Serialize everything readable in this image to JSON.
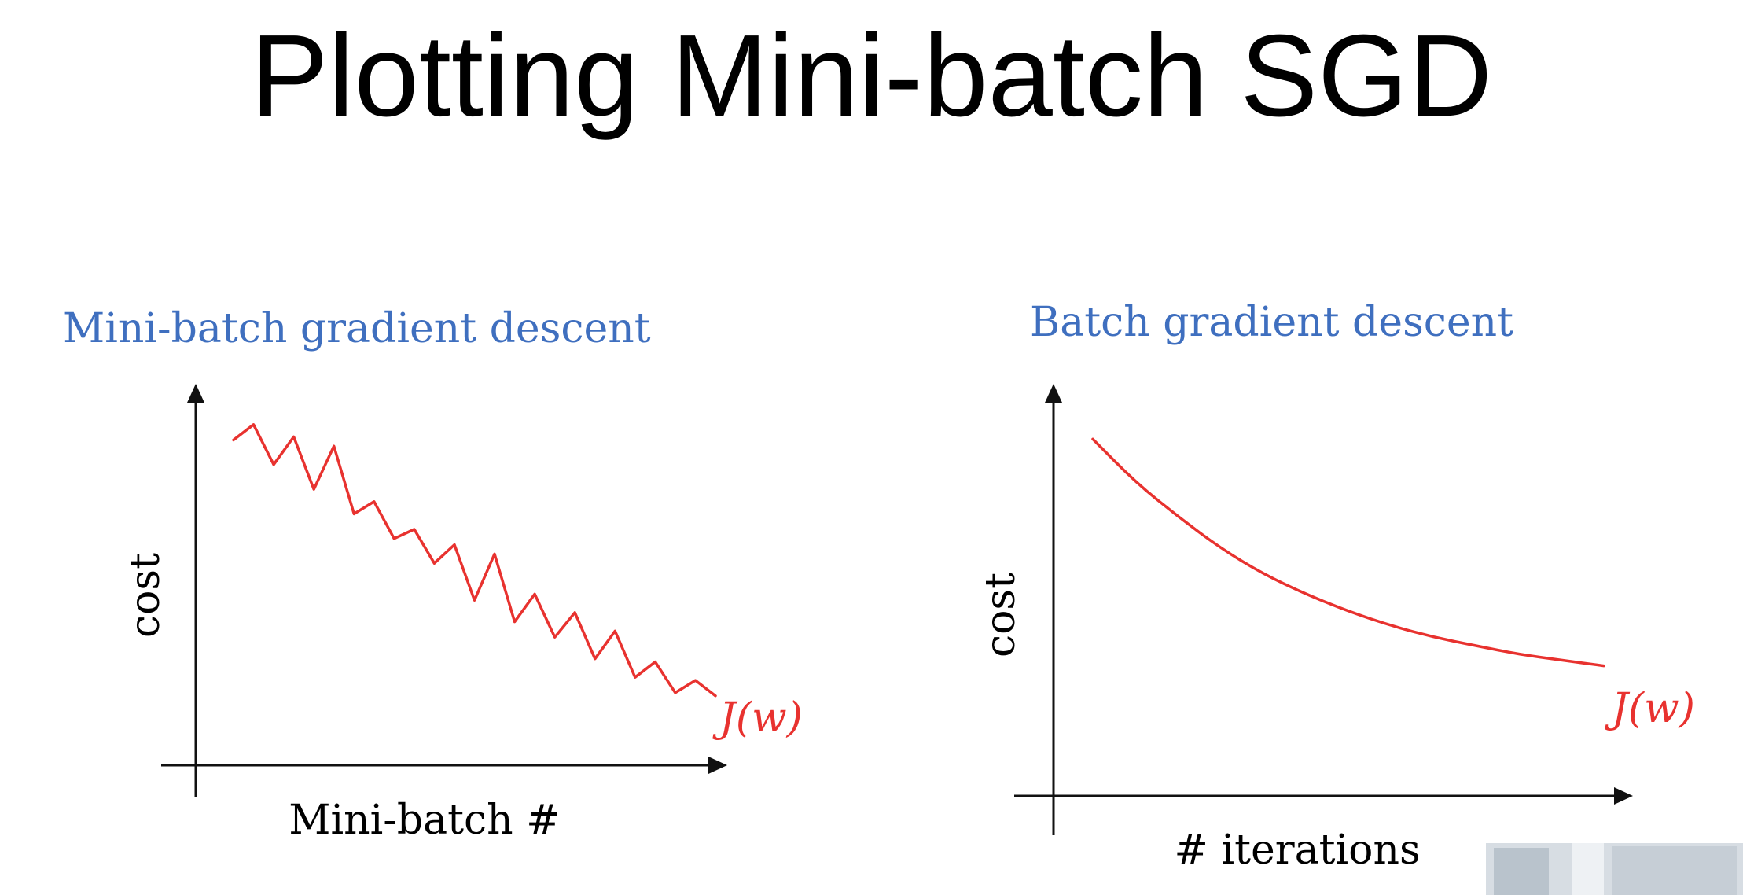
{
  "slide": {
    "title": "Plotting Mini-batch SGD"
  },
  "colors": {
    "heading_blue": "#3f6fbf",
    "curve_red": "#e8322f",
    "axis_black": "#111111"
  },
  "chart_data": [
    {
      "type": "line",
      "title": "Mini-batch gradient descent",
      "xlabel": "Mini-batch #",
      "ylabel": "cost",
      "grid": false,
      "series": [
        {
          "name": "J(w)",
          "x": [
            0,
            1,
            2,
            3,
            4,
            5,
            6,
            7,
            8,
            9,
            10,
            11,
            12,
            13,
            14,
            15,
            16,
            17,
            18,
            19,
            20,
            21,
            22,
            23,
            24
          ],
          "y": [
            0.92,
            0.97,
            0.84,
            0.93,
            0.76,
            0.9,
            0.68,
            0.72,
            0.6,
            0.63,
            0.52,
            0.58,
            0.4,
            0.55,
            0.33,
            0.42,
            0.28,
            0.36,
            0.21,
            0.3,
            0.15,
            0.2,
            0.1,
            0.14,
            0.09
          ]
        }
      ]
    },
    {
      "type": "line",
      "title": "Batch gradient descent",
      "xlabel": "# iterations",
      "ylabel": "cost",
      "grid": false,
      "series": [
        {
          "name": "J(w)",
          "x": [
            0,
            1,
            2,
            3,
            4,
            5,
            6,
            7,
            8,
            9,
            10,
            11,
            12
          ],
          "y": [
            0.95,
            0.8,
            0.68,
            0.57,
            0.48,
            0.41,
            0.35,
            0.3,
            0.26,
            0.23,
            0.2,
            0.18,
            0.16
          ]
        }
      ]
    }
  ]
}
